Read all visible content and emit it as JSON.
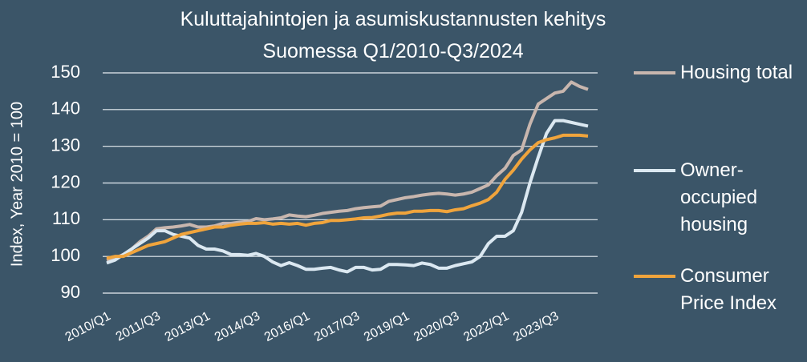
{
  "chart_data": {
    "type": "line",
    "title": "Kuluttajahintojen ja asumiskustannusten kehitys Suomessa Q1/2010-Q3/2024",
    "y_label": "Index, Year 2010 = 100",
    "categories": [
      "2010/Q1",
      null,
      null,
      null,
      null,
      null,
      "2011/Q3",
      null,
      null,
      null,
      null,
      null,
      "2013/Q1",
      null,
      null,
      null,
      null,
      null,
      "2014/Q3",
      null,
      null,
      null,
      null,
      null,
      "2016/Q1",
      null,
      null,
      null,
      null,
      null,
      "2017/Q3",
      null,
      null,
      null,
      null,
      null,
      "2019/Q1",
      null,
      null,
      null,
      null,
      null,
      "2020/Q3",
      null,
      null,
      null,
      null,
      null,
      "2022/Q1",
      null,
      null,
      null,
      null,
      null,
      "2023/Q3",
      null,
      null,
      null,
      null
    ],
    "series": [
      {
        "name": "Housing total",
        "color": "#c8b6ae",
        "values": [
          99,
          99.5,
          100.5,
          102,
          104,
          105.5,
          107.5,
          107.8,
          108,
          108.3,
          108.7,
          108,
          108,
          108.3,
          109,
          109,
          109.3,
          109.5,
          110.3,
          110,
          110.2,
          110.5,
          111.3,
          111,
          110.8,
          111.2,
          111.7,
          112,
          112.3,
          112.5,
          113,
          113.3,
          113.5,
          113.7,
          115,
          115.5,
          116,
          116.3,
          116.7,
          117,
          117.2,
          117,
          116.7,
          117,
          117.5,
          118.5,
          119.5,
          122,
          124,
          127.5,
          129,
          136,
          141.5,
          143,
          144.5,
          145,
          147.5,
          146.3,
          145.5
        ]
      },
      {
        "name": "Owner-occupied housing",
        "color": "#dbe8f1",
        "values": [
          98.2,
          99,
          100.5,
          102,
          103.5,
          105,
          107,
          107,
          106,
          105.5,
          105,
          103,
          102,
          102,
          101.5,
          100.5,
          100.5,
          100.3,
          100.8,
          100,
          98.5,
          97.5,
          98.3,
          97.5,
          96.5,
          96.5,
          96.8,
          97,
          96.3,
          95.8,
          97,
          97,
          96.3,
          96.5,
          97.8,
          97.8,
          97.7,
          97.5,
          98.2,
          97.8,
          96.8,
          96.8,
          97.5,
          98,
          98.5,
          100,
          103.5,
          105.5,
          105.5,
          107,
          112,
          120,
          127,
          133.5,
          137,
          137,
          136.5,
          136,
          135.5
        ]
      },
      {
        "name": "Consumer Price Index",
        "color": "#f0a43c",
        "values": [
          99.5,
          100,
          100,
          101,
          102,
          103,
          103.5,
          104,
          105,
          106,
          106.5,
          107,
          107.5,
          108,
          108,
          108.5,
          108.8,
          109,
          109,
          109.2,
          108.8,
          109,
          108.8,
          109,
          108.5,
          109,
          109.2,
          109.8,
          109.8,
          110,
          110.2,
          110.5,
          110.6,
          111,
          111.5,
          111.8,
          111.8,
          112.3,
          112.3,
          112.5,
          112.5,
          112.2,
          112.7,
          113,
          113.8,
          114.5,
          115.5,
          117.5,
          121,
          123.5,
          126.5,
          129,
          131,
          131.8,
          132.3,
          133,
          133,
          133,
          132.8
        ]
      }
    ],
    "ylim": [
      90,
      150
    ],
    "yticks": [
      90,
      100,
      110,
      120,
      130,
      140,
      150
    ],
    "grid": true,
    "legend": "right"
  }
}
